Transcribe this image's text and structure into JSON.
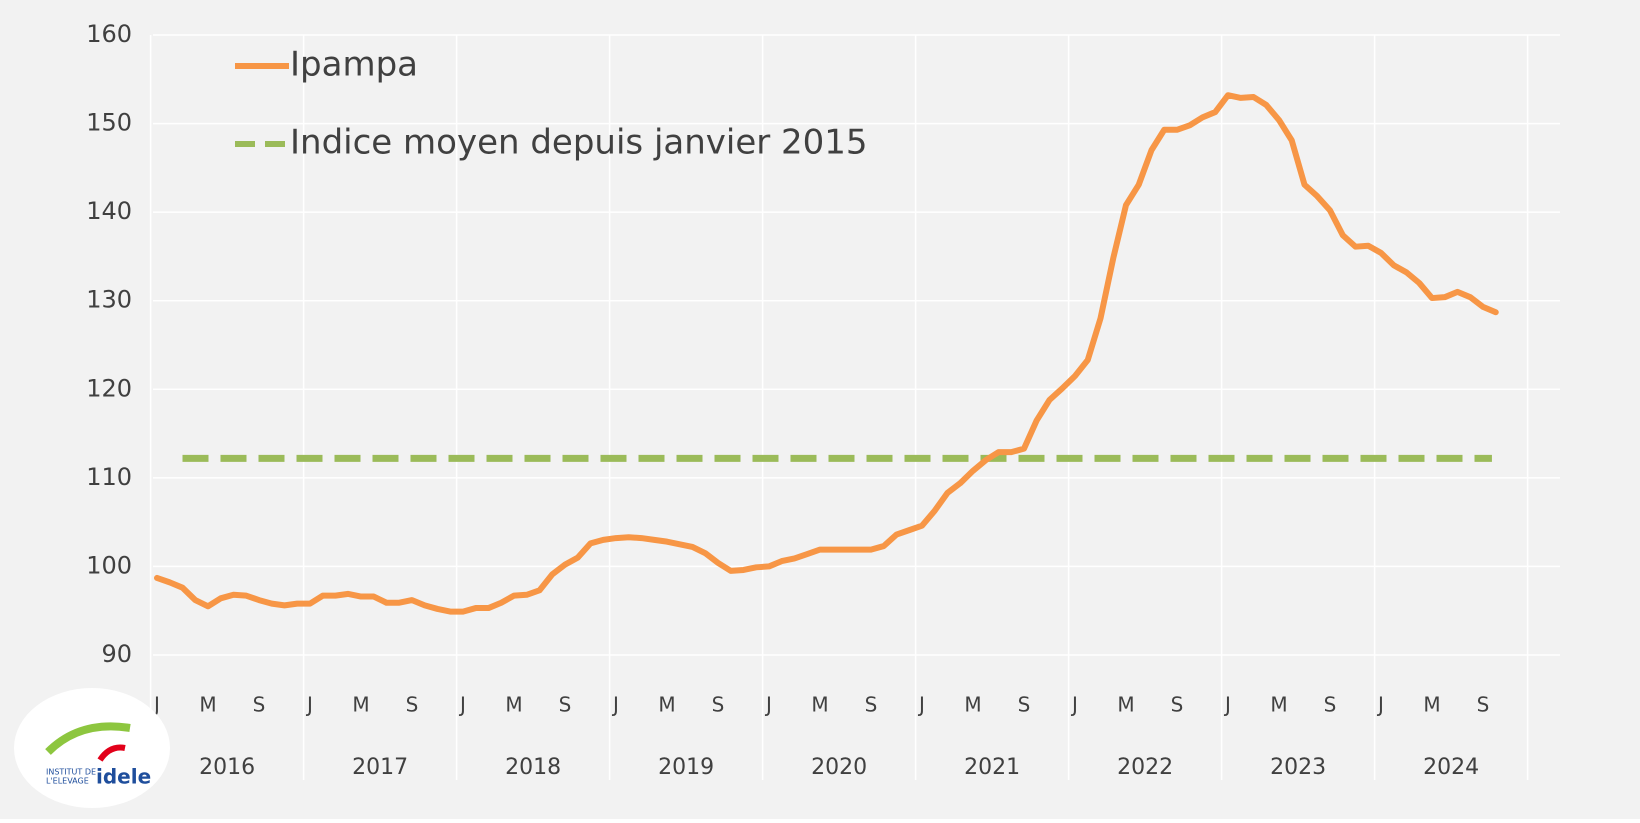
{
  "chart_data": {
    "type": "line",
    "categories": [
      "J",
      null,
      null,
      null,
      "M",
      null,
      null,
      null,
      "S",
      null,
      null,
      null,
      "J",
      null,
      null,
      null,
      "M",
      null,
      null,
      null,
      "S",
      null,
      null,
      null,
      "J",
      null,
      null,
      null,
      "M",
      null,
      null,
      null,
      "S",
      null,
      null,
      null,
      "J",
      null,
      null,
      null,
      "M",
      null,
      null,
      null,
      "S",
      null,
      null,
      null,
      "J",
      null,
      null,
      null,
      "M",
      null,
      null,
      null,
      "S",
      null,
      null,
      null,
      "J",
      null,
      null,
      null,
      "M",
      null,
      null,
      null,
      "S",
      null,
      null,
      null,
      "J",
      null,
      null,
      null,
      "M",
      null,
      null,
      null,
      "S",
      null,
      null,
      null,
      "J",
      null,
      null,
      null,
      "M",
      null,
      null,
      null,
      "S",
      null,
      null,
      null,
      "J",
      null,
      null,
      null,
      "M",
      null,
      null,
      null,
      "S",
      null
    ],
    "year_labels": [
      "2016",
      "2017",
      "2018",
      "2019",
      "2020",
      "2021",
      "2022",
      "2023",
      "2024"
    ],
    "series": [
      {
        "name": "Ipampa",
        "color": "#f79646",
        "values": [
          98.7,
          98.2,
          97.6,
          96.2,
          95.5,
          96.4,
          96.8,
          96.7,
          96.2,
          95.8,
          95.6,
          95.8,
          95.8,
          96.7,
          96.7,
          96.9,
          96.6,
          96.6,
          95.9,
          95.9,
          96.2,
          95.6,
          95.2,
          94.9,
          94.9,
          95.3,
          95.3,
          95.9,
          96.7,
          96.8,
          97.3,
          99.1,
          100.2,
          101.0,
          102.6,
          103.0,
          103.2,
          103.3,
          103.2,
          103.0,
          102.8,
          102.5,
          102.2,
          101.5,
          100.4,
          99.5,
          99.6,
          99.9,
          100.0,
          100.6,
          100.9,
          101.4,
          101.9,
          101.9,
          101.9,
          101.9,
          101.9,
          102.3,
          103.6,
          104.1,
          104.6,
          106.3,
          108.3,
          109.4,
          110.8,
          112.0,
          112.9,
          112.9,
          113.3,
          116.5,
          118.8,
          120.1,
          121.5,
          123.3,
          128.0,
          134.8,
          140.8,
          143.1,
          147.0,
          149.3,
          149.3,
          149.8,
          150.7,
          151.3,
          153.2,
          152.9,
          153.0,
          152.1,
          150.4,
          148.1,
          143.1,
          141.8,
          140.2,
          137.4,
          136.1,
          136.2,
          135.4,
          134.0,
          133.2,
          132.0,
          130.3,
          130.4,
          131.0,
          130.4,
          129.3,
          128.7
        ]
      }
    ],
    "reference_lines": [
      {
        "name": "Indice moyen depuis janvier 2015",
        "value": 112.2,
        "color": "#9bbb59",
        "dashed": true
      }
    ],
    "ylim": [
      90,
      160
    ],
    "yticks": [
      90,
      100,
      110,
      120,
      130,
      140,
      150,
      160
    ],
    "grid": true
  },
  "logo": {
    "line1": "INSTITUT DE",
    "line2": "L'ELEVAGE",
    "brand": "idele"
  }
}
